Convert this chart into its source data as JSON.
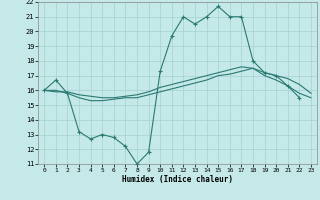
{
  "title": "",
  "xlabel": "Humidex (Indice chaleur)",
  "xlim": [
    -0.5,
    23.5
  ],
  "ylim": [
    11,
    22
  ],
  "bg_color": "#c5e8e8",
  "grid_color": "#aad4d4",
  "line_color": "#2a7a72",
  "line1_x": [
    0,
    1,
    2,
    3,
    4,
    5,
    6,
    7,
    8,
    9,
    10,
    11,
    12,
    13,
    14,
    15,
    16,
    17,
    18,
    19,
    20,
    21,
    22
  ],
  "line1_y": [
    16.0,
    16.7,
    15.8,
    13.2,
    12.7,
    13.0,
    12.8,
    12.2,
    11.0,
    11.8,
    17.3,
    19.7,
    21.0,
    20.5,
    21.0,
    21.7,
    21.0,
    21.0,
    18.0,
    17.2,
    17.0,
    16.3,
    15.5
  ],
  "line2_x": [
    0,
    1,
    2,
    3,
    4,
    5,
    6,
    7,
    8,
    9,
    10,
    11,
    12,
    13,
    14,
    15,
    16,
    17,
    18,
    19,
    20,
    21,
    22,
    23
  ],
  "line2_y": [
    16.0,
    16.0,
    15.8,
    15.5,
    15.3,
    15.3,
    15.4,
    15.5,
    15.5,
    15.7,
    15.9,
    16.1,
    16.3,
    16.5,
    16.7,
    17.0,
    17.1,
    17.3,
    17.5,
    17.0,
    16.7,
    16.3,
    15.8,
    15.5
  ],
  "line3_x": [
    0,
    1,
    2,
    3,
    4,
    5,
    6,
    7,
    8,
    9,
    10,
    11,
    12,
    13,
    14,
    15,
    16,
    17,
    18,
    19,
    20,
    21,
    22,
    23
  ],
  "line3_y": [
    16.0,
    15.9,
    15.9,
    15.7,
    15.6,
    15.5,
    15.5,
    15.6,
    15.7,
    15.9,
    16.2,
    16.4,
    16.6,
    16.8,
    17.0,
    17.2,
    17.4,
    17.6,
    17.5,
    17.2,
    17.0,
    16.8,
    16.4,
    15.8
  ],
  "yticks": [
    11,
    12,
    13,
    14,
    15,
    16,
    17,
    18,
    19,
    20,
    21,
    22
  ],
  "xticks": [
    0,
    1,
    2,
    3,
    4,
    5,
    6,
    7,
    8,
    9,
    10,
    11,
    12,
    13,
    14,
    15,
    16,
    17,
    18,
    19,
    20,
    21,
    22,
    23
  ]
}
